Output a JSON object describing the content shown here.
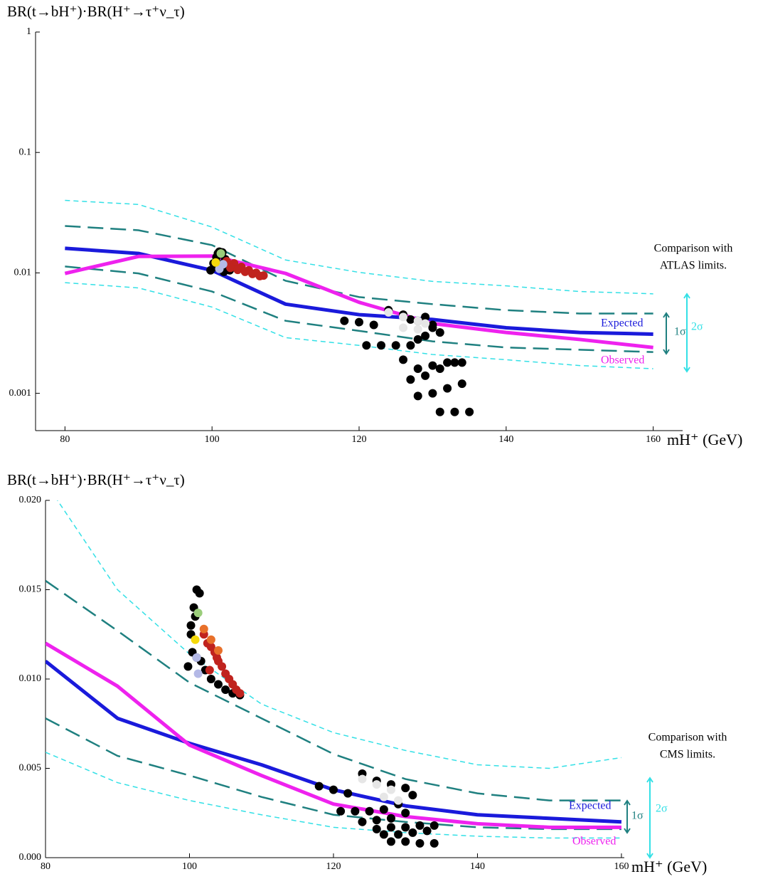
{
  "chart_data": [
    {
      "type": "line",
      "log_y": true,
      "y_label": "BR(t→bH⁺)·BR(H⁺→τ⁺ν_τ)",
      "x_label": "mH⁺ (GeV)",
      "annotation": [
        "Comparison with",
        "ATLAS limits."
      ],
      "xlim": [
        76,
        164
      ],
      "xticks": [
        80,
        100,
        120,
        140,
        160
      ],
      "ylim": [
        0.00049,
        1
      ],
      "yticks": [
        0.001,
        0.01,
        0.1,
        1
      ],
      "x": [
        80,
        90,
        100,
        110,
        120,
        130,
        140,
        150,
        160
      ],
      "series": [
        {
          "name": "Expected",
          "color": "#1a1adb",
          "values": [
            0.016,
            0.0145,
            0.0105,
            0.0055,
            0.0045,
            0.0041,
            0.0035,
            0.0032,
            0.0031
          ]
        },
        {
          "name": "Observed",
          "color": "#ee22ee",
          "values": [
            0.0099,
            0.0137,
            0.0138,
            0.0099,
            0.0057,
            0.0038,
            0.0032,
            0.0028,
            0.0024
          ]
        }
      ],
      "bands": [
        {
          "label": "2σ",
          "color": "#33e0e6",
          "upper": [
            0.04,
            0.037,
            0.024,
            0.0128,
            0.0101,
            0.0085,
            0.0078,
            0.007,
            0.0067
          ],
          "lower": [
            0.0083,
            0.0075,
            0.0052,
            0.0029,
            0.0025,
            0.0021,
            0.0019,
            0.0017,
            0.0016
          ]
        },
        {
          "label": "1σ",
          "color": "#1f8080",
          "upper": [
            0.0245,
            0.0226,
            0.017,
            0.0086,
            0.0063,
            0.0055,
            0.0049,
            0.0046,
            0.0046
          ],
          "lower": [
            0.0113,
            0.0099,
            0.007,
            0.004,
            0.0033,
            0.0027,
            0.0024,
            0.0023,
            0.0022
          ]
        }
      ],
      "points": [
        {
          "color": "#000000",
          "x": [
            99.8,
            100.2,
            100.6,
            101,
            101.4,
            101.8,
            100.4,
            101.2,
            102,
            100.8,
            102.4,
            101.6
          ],
          "y": [
            0.0105,
            0.012,
            0.0135,
            0.015,
            0.0148,
            0.013,
            0.0112,
            0.0118,
            0.011,
            0.0145,
            0.0105,
            0.0102
          ]
        },
        {
          "color": "#000000",
          "x": [
            118,
            120,
            122,
            124,
            126,
            127,
            128,
            129,
            130,
            131,
            121,
            123,
            125,
            127,
            128,
            129,
            130,
            126,
            128,
            130,
            132,
            134,
            127,
            129,
            131,
            133,
            128,
            130,
            132,
            134,
            131,
            133,
            135
          ],
          "y": [
            0.004,
            0.0039,
            0.0037,
            0.0049,
            0.0045,
            0.0041,
            0.004,
            0.0043,
            0.0037,
            0.0032,
            0.0025,
            0.0025,
            0.0025,
            0.0025,
            0.0028,
            0.003,
            0.0035,
            0.0019,
            0.0016,
            0.0017,
            0.0018,
            0.0018,
            0.0013,
            0.0014,
            0.0016,
            0.0018,
            0.00095,
            0.001,
            0.0011,
            0.0012,
            0.0007,
            0.0007,
            0.0007
          ]
        },
        {
          "color": "#c0231e",
          "x": [
            102,
            103,
            104,
            105,
            106,
            107,
            102.5,
            103.5,
            104.5,
            105.5,
            106.5
          ],
          "y": [
            0.0125,
            0.012,
            0.0112,
            0.0105,
            0.01,
            0.0095,
            0.011,
            0.0106,
            0.0102,
            0.0098,
            0.0094
          ]
        },
        {
          "color": "#e6e6e6",
          "x": [
            124,
            126,
            128,
            129,
            126,
            128
          ],
          "y": [
            0.0047,
            0.0043,
            0.004,
            0.0038,
            0.0035,
            0.0034
          ]
        },
        {
          "color": "#b4b9e6",
          "x": [
            101,
            101.5
          ],
          "y": [
            0.0108,
            0.0118
          ]
        },
        {
          "color": "#f5d90a",
          "x": [
            100.5
          ],
          "y": [
            0.0122
          ]
        },
        {
          "color": "#9acd7a",
          "x": [
            101.2
          ],
          "y": [
            0.0145
          ]
        }
      ]
    },
    {
      "type": "line",
      "log_y": false,
      "y_label": "BR(t→bH⁺)·BR(H⁺→τ⁺ν_τ)",
      "x_label": "mH⁺ (GeV)",
      "annotation": [
        "Comparison with",
        "CMS limits."
      ],
      "xlim": [
        80,
        160.4
      ],
      "xticks": [
        80,
        100,
        120,
        140,
        160
      ],
      "ylim": [
        0,
        0.02
      ],
      "yticks": [
        {
          "value": 0,
          "label": "0.000"
        },
        {
          "value": 0.005,
          "label": "0.005"
        },
        {
          "value": 0.01,
          "label": "0.010"
        },
        {
          "value": 0.015,
          "label": "0.015"
        },
        {
          "value": 0.02,
          "label": "0.020"
        }
      ],
      "x": [
        80,
        90,
        100,
        110,
        120,
        130,
        140,
        150,
        160
      ],
      "series": [
        {
          "name": "Expected",
          "color": "#1a1adb",
          "values": [
            0.011,
            0.0078,
            0.0064,
            0.0052,
            0.0038,
            0.0029,
            0.0024,
            0.0022,
            0.002
          ]
        },
        {
          "name": "Observed",
          "color": "#ee22ee",
          "values": [
            0.012,
            0.0096,
            0.0063,
            0.0046,
            0.003,
            0.0023,
            0.0019,
            0.0017,
            0.0017
          ]
        }
      ],
      "bands": [
        {
          "label": "2σ",
          "color": "#33e0e6",
          "upper": [
            0.021,
            0.015,
            0.0114,
            0.0086,
            0.007,
            0.006,
            0.0052,
            0.005,
            0.0056
          ],
          "lower": [
            0.0059,
            0.0042,
            0.0032,
            0.0024,
            0.0017,
            0.0014,
            0.0012,
            0.0011,
            0.0011
          ]
        },
        {
          "label": "1σ",
          "color": "#1f8080",
          "upper": [
            0.0155,
            0.0127,
            0.0098,
            0.0078,
            0.0058,
            0.0044,
            0.0036,
            0.0032,
            0.0032
          ],
          "lower": [
            0.0078,
            0.0057,
            0.0046,
            0.0034,
            0.0024,
            0.002,
            0.0017,
            0.0016,
            0.0016
          ]
        }
      ],
      "points": [
        {
          "color": "#000000",
          "x": [
            99.8,
            100.2,
            100.6,
            101,
            101.4,
            100.4,
            101,
            101.6,
            102.2,
            103,
            104,
            105,
            106,
            107,
            100.2,
            100.8
          ],
          "y": [
            0.0107,
            0.0125,
            0.014,
            0.015,
            0.0148,
            0.0115,
            0.0112,
            0.011,
            0.0105,
            0.01,
            0.0097,
            0.0094,
            0.0092,
            0.0091,
            0.013,
            0.0135
          ]
        },
        {
          "color": "#000000",
          "x": [
            118,
            120,
            122,
            124,
            126,
            128,
            130,
            131,
            121,
            123,
            125,
            127,
            129,
            126,
            128,
            130,
            132,
            134,
            127,
            129,
            131,
            133,
            128,
            130,
            132,
            134,
            124,
            126,
            128,
            130
          ],
          "y": [
            0.004,
            0.0038,
            0.0036,
            0.0047,
            0.0043,
            0.0041,
            0.0039,
            0.0035,
            0.0026,
            0.0026,
            0.0026,
            0.0027,
            0.003,
            0.0016,
            0.0017,
            0.0017,
            0.0018,
            0.0018,
            0.0013,
            0.0013,
            0.0014,
            0.0015,
            0.0009,
            0.0009,
            0.0008,
            0.0008,
            0.002,
            0.0021,
            0.0022,
            0.0025
          ]
        },
        {
          "color": "#c0231e",
          "x": [
            102,
            102.5,
            103,
            103.5,
            104,
            104.5,
            105,
            105.5,
            106,
            106.5,
            107,
            102.8,
            103.8
          ],
          "y": [
            0.0125,
            0.012,
            0.0118,
            0.0115,
            0.011,
            0.0107,
            0.0103,
            0.01,
            0.0097,
            0.0094,
            0.0092,
            0.0105,
            0.0112
          ]
        },
        {
          "color": "#e8702a",
          "x": [
            102,
            103,
            104
          ],
          "y": [
            0.0128,
            0.0122,
            0.0116
          ]
        },
        {
          "color": "#e6e6e6",
          "x": [
            124,
            126,
            128,
            127,
            129
          ],
          "y": [
            0.0044,
            0.0041,
            0.0038,
            0.0034,
            0.0032
          ]
        },
        {
          "color": "#b4b9e6",
          "x": [
            101,
            101.2
          ],
          "y": [
            0.0112,
            0.0103
          ]
        },
        {
          "color": "#f5d90a",
          "x": [
            100.8
          ],
          "y": [
            0.0122
          ]
        },
        {
          "color": "#9acd7a",
          "x": [
            101.2
          ],
          "y": [
            0.0137
          ]
        }
      ]
    }
  ]
}
